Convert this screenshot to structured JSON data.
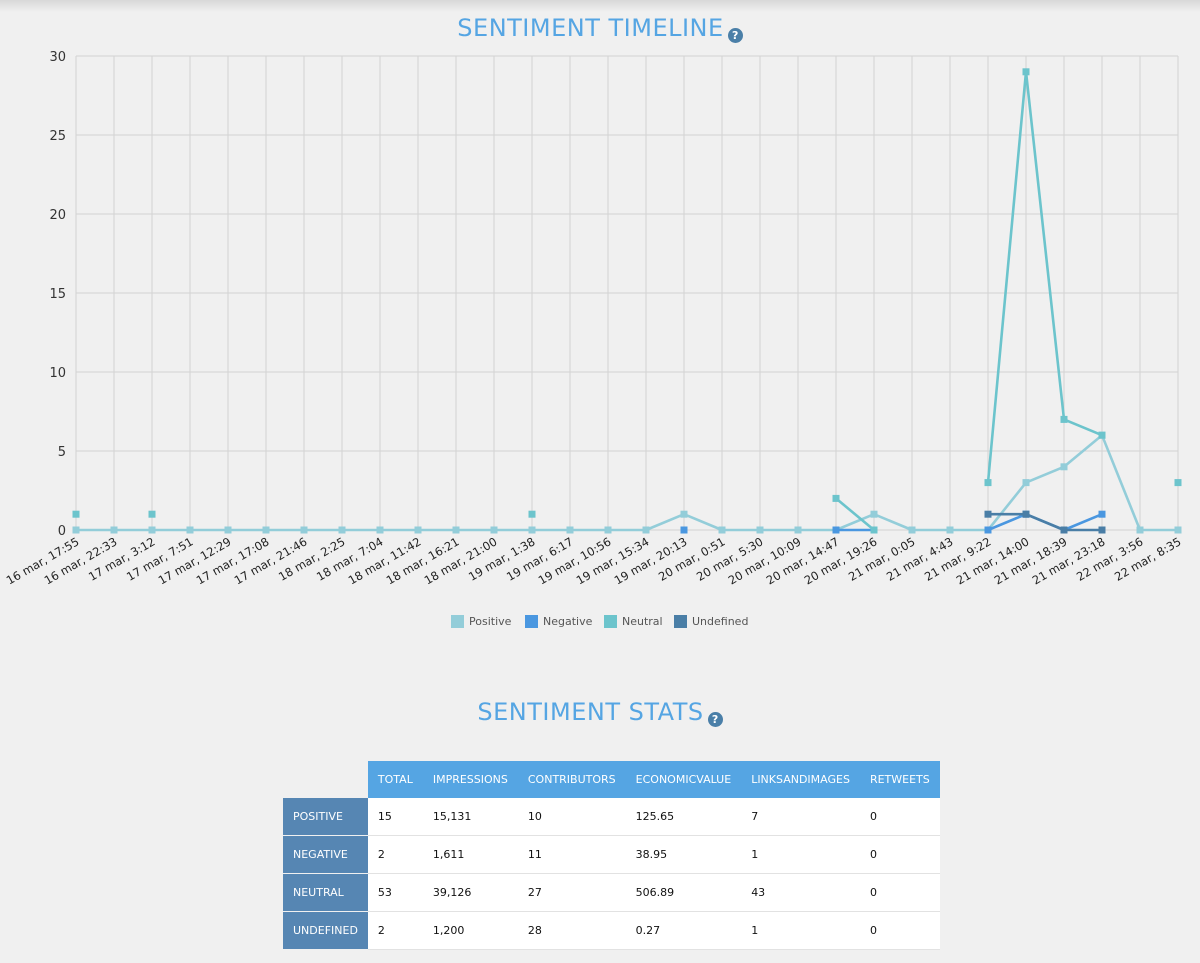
{
  "titles": {
    "timeline": "SENTIMENT TIMELINE",
    "stats": "SENTIMENT STATS",
    "help": "?"
  },
  "chart_data": {
    "type": "line",
    "title": "SENTIMENT TIMELINE",
    "xlabel": "",
    "ylabel": "",
    "ylim": [
      0,
      30
    ],
    "yticks": [
      0,
      5,
      10,
      15,
      20,
      25,
      30
    ],
    "grid": true,
    "legend_position": "bottom-center",
    "categories": [
      "16 mar, 17:55",
      "16 mar, 22:33",
      "17 mar, 3:12",
      "17 mar, 7:51",
      "17 mar, 12:29",
      "17 mar, 17:08",
      "17 mar, 21:46",
      "18 mar, 2:25",
      "18 mar, 7:04",
      "18 mar, 11:42",
      "18 mar, 16:21",
      "18 mar, 21:00",
      "19 mar, 1:38",
      "19 mar, 6:17",
      "19 mar, 10:56",
      "19 mar, 15:34",
      "19 mar, 20:13",
      "20 mar, 0:51",
      "20 mar, 5:30",
      "20 mar, 10:09",
      "20 mar, 14:47",
      "20 mar, 19:26",
      "21 mar, 0:05",
      "21 mar, 4:43",
      "21 mar, 9:22",
      "21 mar, 14:00",
      "21 mar, 18:39",
      "21 mar, 23:18",
      "22 mar, 3:56",
      "22 mar, 8:35"
    ],
    "series": [
      {
        "name": "Positive",
        "color": "#93cdd9",
        "values": [
          0,
          0,
          0,
          0,
          0,
          0,
          0,
          0,
          0,
          0,
          0,
          0,
          0,
          0,
          0,
          0,
          1,
          0,
          0,
          0,
          0,
          1,
          0,
          0,
          0,
          3,
          4,
          6,
          0,
          0
        ]
      },
      {
        "name": "Negative",
        "color": "#4a97e0",
        "values": [
          null,
          null,
          null,
          null,
          null,
          null,
          null,
          null,
          null,
          null,
          null,
          null,
          null,
          null,
          null,
          null,
          0,
          null,
          null,
          null,
          0,
          0,
          null,
          null,
          0,
          1,
          0,
          1,
          null,
          null
        ]
      },
      {
        "name": "Neutral",
        "color": "#6cc4cc",
        "values": [
          1,
          null,
          1,
          null,
          null,
          null,
          null,
          null,
          null,
          null,
          null,
          null,
          1,
          null,
          null,
          null,
          null,
          null,
          null,
          null,
          2,
          0,
          null,
          null,
          3,
          29,
          7,
          6,
          null,
          3
        ]
      },
      {
        "name": "Undefined",
        "color": "#4a7ea6",
        "values": [
          null,
          null,
          null,
          null,
          null,
          null,
          null,
          null,
          null,
          null,
          null,
          null,
          null,
          null,
          null,
          null,
          null,
          null,
          null,
          null,
          null,
          null,
          null,
          null,
          1,
          1,
          0,
          0,
          null,
          null
        ]
      }
    ]
  },
  "stats": {
    "columns": [
      "TOTAL",
      "IMPRESSIONS",
      "CONTRIBUTORS",
      "ECONOMICVALUE",
      "LINKSANDIMAGES",
      "RETWEETS"
    ],
    "rows": [
      {
        "label": "POSITIVE",
        "cells": [
          "15",
          "15,131",
          "10",
          "125.65",
          "7",
          "0"
        ]
      },
      {
        "label": "NEGATIVE",
        "cells": [
          "2",
          "1,611",
          "11",
          "38.95",
          "1",
          "0"
        ]
      },
      {
        "label": "NEUTRAL",
        "cells": [
          "53",
          "39,126",
          "27",
          "506.89",
          "43",
          "0"
        ]
      },
      {
        "label": "UNDEFINED",
        "cells": [
          "2",
          "1,200",
          "28",
          "0.27",
          "1",
          "0"
        ]
      }
    ]
  }
}
